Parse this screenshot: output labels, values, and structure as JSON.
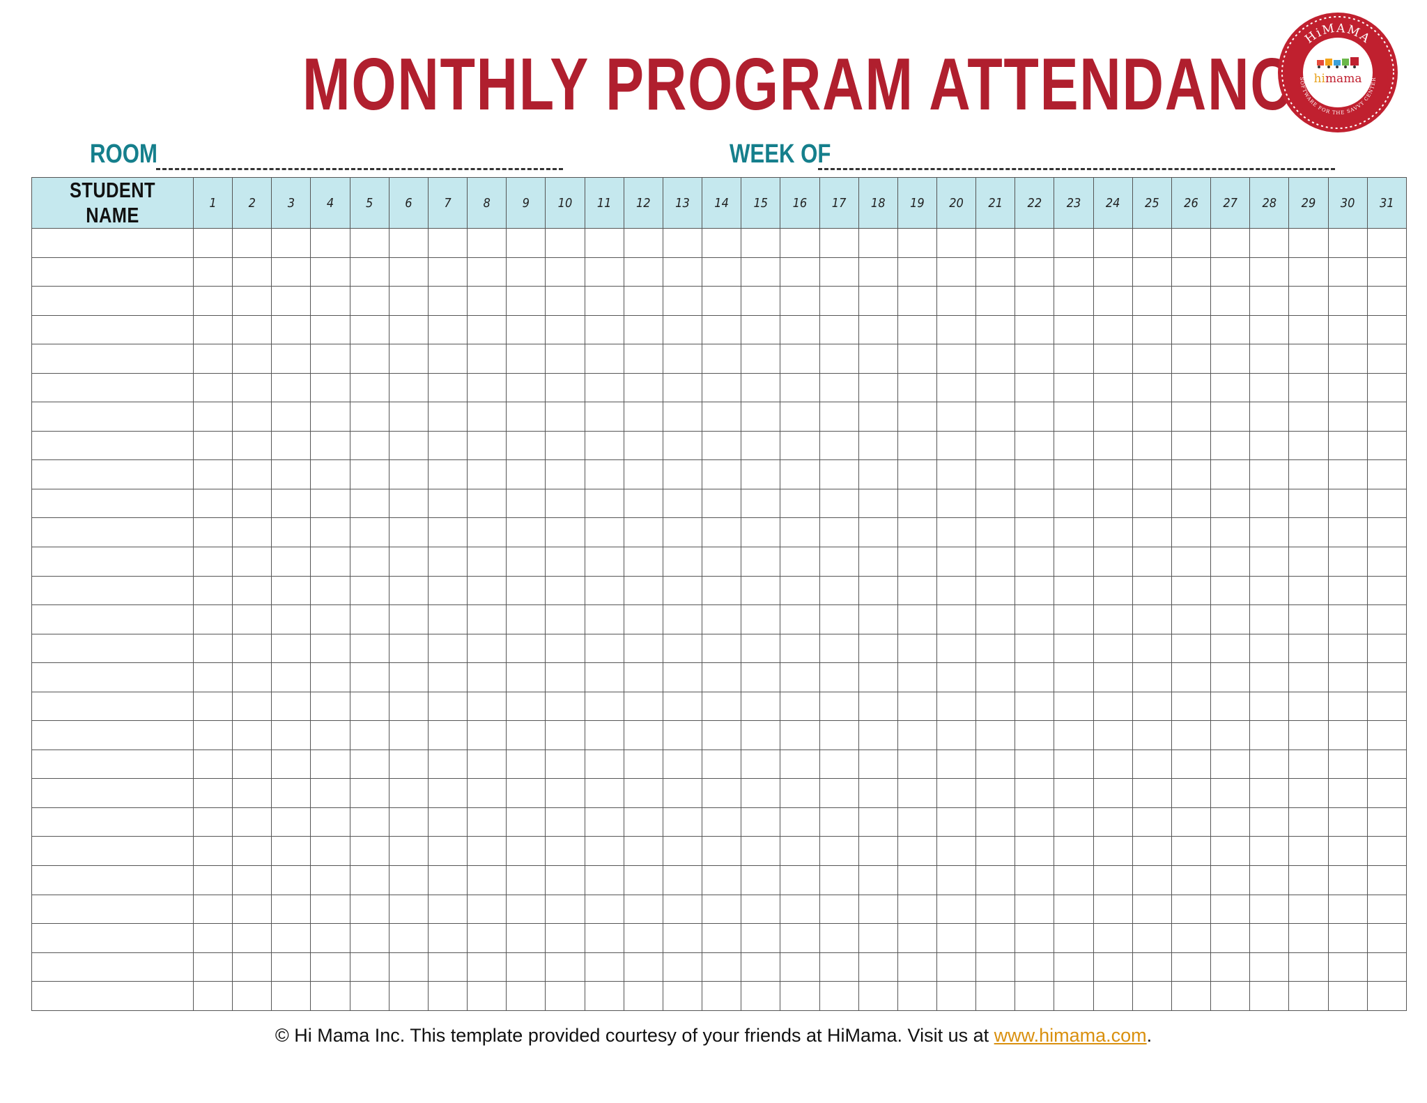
{
  "header": {
    "title": "MONTHLY PROGRAM ATTENDANCE",
    "title_color": "#b01f2e",
    "room_label": "ROOM",
    "week_label": "WEEK OF",
    "label_color": "#157f8c"
  },
  "logo": {
    "top_text": "HiMAMA",
    "brand_hi": "hi",
    "brand_mama": "mama",
    "bottom_text": "SOFTWARE FOR THE SAVVY CENTER",
    "ring_color": "#c0202f"
  },
  "table": {
    "name_header": "STUDENT NAME",
    "header_bg": "#c5e8ee",
    "days": [
      "1",
      "2",
      "3",
      "4",
      "5",
      "6",
      "7",
      "8",
      "9",
      "10",
      "11",
      "12",
      "13",
      "14",
      "15",
      "16",
      "17",
      "18",
      "19",
      "20",
      "21",
      "22",
      "23",
      "24",
      "25",
      "26",
      "27",
      "28",
      "29",
      "30",
      "31"
    ],
    "blank_rows": 27
  },
  "footer": {
    "text": "© Hi Mama Inc.  This template provided courtesy of your friends at HiMama. Visit us at ",
    "link_text": "www.himama.com",
    "trailing": ".",
    "link_color": "#d9900f"
  }
}
